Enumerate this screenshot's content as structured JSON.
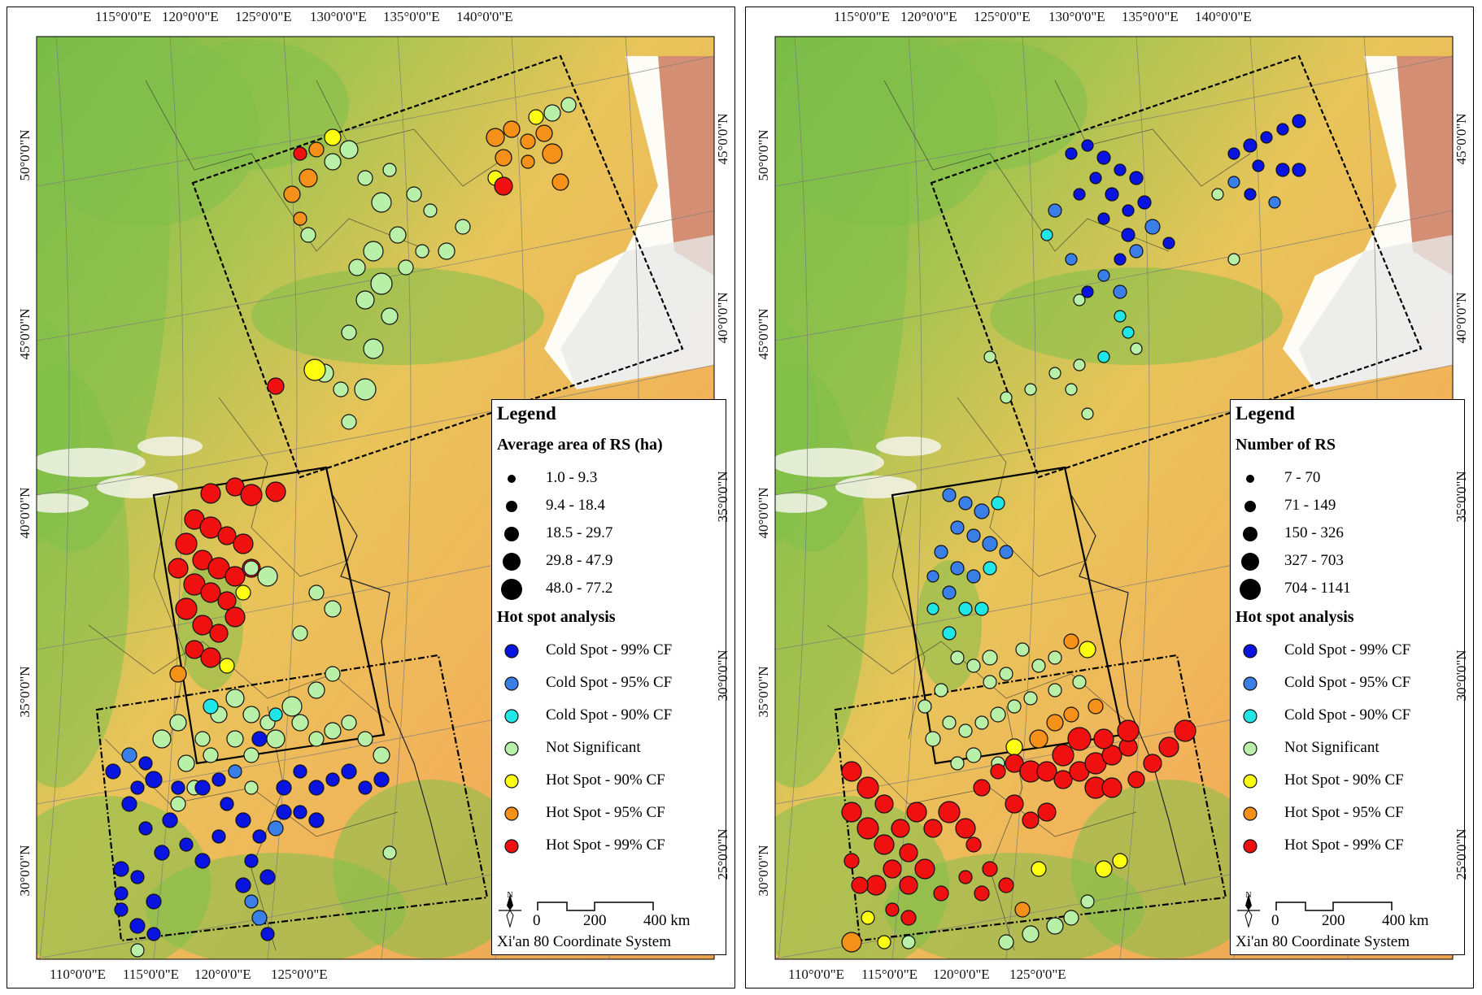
{
  "axes": {
    "top": [
      "115°0'0\"E",
      "120°0'0\"E",
      "125°0'0\"E",
      "130°0'0\"E",
      "135°0'0\"E",
      "140°0'0\"E"
    ],
    "bottom": [
      "110°0'0\"E",
      "115°0'0\"E",
      "120°0'0\"E",
      "125°0'0\"E"
    ],
    "left": [
      "50°0'0\"N",
      "45°0'0\"N",
      "40°0'0\"N",
      "35°0'0\"N",
      "30°0'0\"N"
    ],
    "right": [
      "45°0'0\"N",
      "40°0'0\"N",
      "35°0'0\"N",
      "30°0'0\"N",
      "25°0'0\"N"
    ]
  },
  "legend_common": {
    "title": "Legend",
    "hot_spot_title": "Hot spot analysis",
    "categories": [
      {
        "label": "Cold Spot - 99% CF",
        "color": "#0a14e0"
      },
      {
        "label": "Cold Spot - 95% CF",
        "color": "#3a7ee8"
      },
      {
        "label": "Cold Spot - 90% CF",
        "color": "#20e6e6"
      },
      {
        "label": "Not Significant",
        "color": "#b8f0a8"
      },
      {
        "label": "Hot Spot - 90% CF",
        "color": "#ffff10"
      },
      {
        "label": "Hot Spot - 95% CF",
        "color": "#f59018"
      },
      {
        "label": "Hot Spot - 99% CF",
        "color": "#f01010"
      }
    ],
    "north_label": "N",
    "scale_labels": [
      "0",
      "200",
      "400 km"
    ],
    "coordinate_system": "Xi'an 80 Coordinate System"
  },
  "panels": [
    {
      "size_title": "Average area of RS (ha)",
      "size_classes": [
        "1.0 - 9.3",
        "9.4 - 18.4",
        "18.5 - 29.7",
        "29.8 - 47.9",
        "48.0 - 77.2"
      ]
    },
    {
      "size_title": "Number of RS",
      "size_classes": [
        "7 - 70",
        "71 - 149",
        "150 - 326",
        "327 - 703",
        "704 - 1141"
      ]
    }
  ],
  "colors": {
    "terrain_low": "#f2b25a",
    "terrain_mid": "#e8c45a",
    "terrain_green": "#7fbf4a",
    "terrain_high": "#ffffff",
    "sea_edge": "#c0603c"
  }
}
